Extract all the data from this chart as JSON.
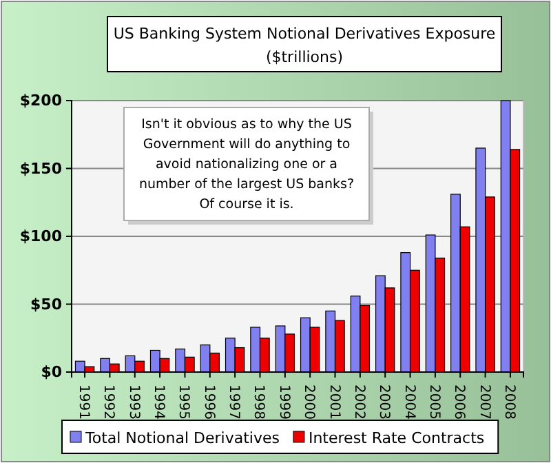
{
  "chart_data": {
    "type": "bar",
    "title": "US Banking System Notional Derivatives Exposure",
    "subtitle": "($trillions)",
    "categories": [
      "1991",
      "1992",
      "1993",
      "1994",
      "1995",
      "1996",
      "1997",
      "1998",
      "1999",
      "2000",
      "2001",
      "2002",
      "2003",
      "2004",
      "2005",
      "2006",
      "2007",
      "2008"
    ],
    "series": [
      {
        "name": "Total Notional Derivatives",
        "color": "#8080f0",
        "values": [
          8,
          10,
          12,
          16,
          17,
          20,
          25,
          33,
          34,
          40,
          45,
          56,
          71,
          88,
          101,
          131,
          165,
          200
        ]
      },
      {
        "name": "Interest Rate Contracts",
        "color": "#ee0000",
        "values": [
          4,
          6,
          8,
          10,
          11,
          14,
          18,
          25,
          28,
          33,
          38,
          49,
          62,
          75,
          84,
          107,
          129,
          164
        ]
      }
    ],
    "ylim": [
      0,
      200
    ],
    "yticks": [
      {
        "value": 0,
        "label": "$0"
      },
      {
        "value": 50,
        "label": "$50"
      },
      {
        "value": 100,
        "label": "$100"
      },
      {
        "value": 150,
        "label": "$150"
      },
      {
        "value": 200,
        "label": "$200"
      }
    ],
    "grid": "y",
    "legend": "bottom",
    "annotations": [
      "Isn't it obvious as to why the US Government will do anything to avoid nationalizing one or a number of the largest US banks? Of course it is."
    ]
  }
}
